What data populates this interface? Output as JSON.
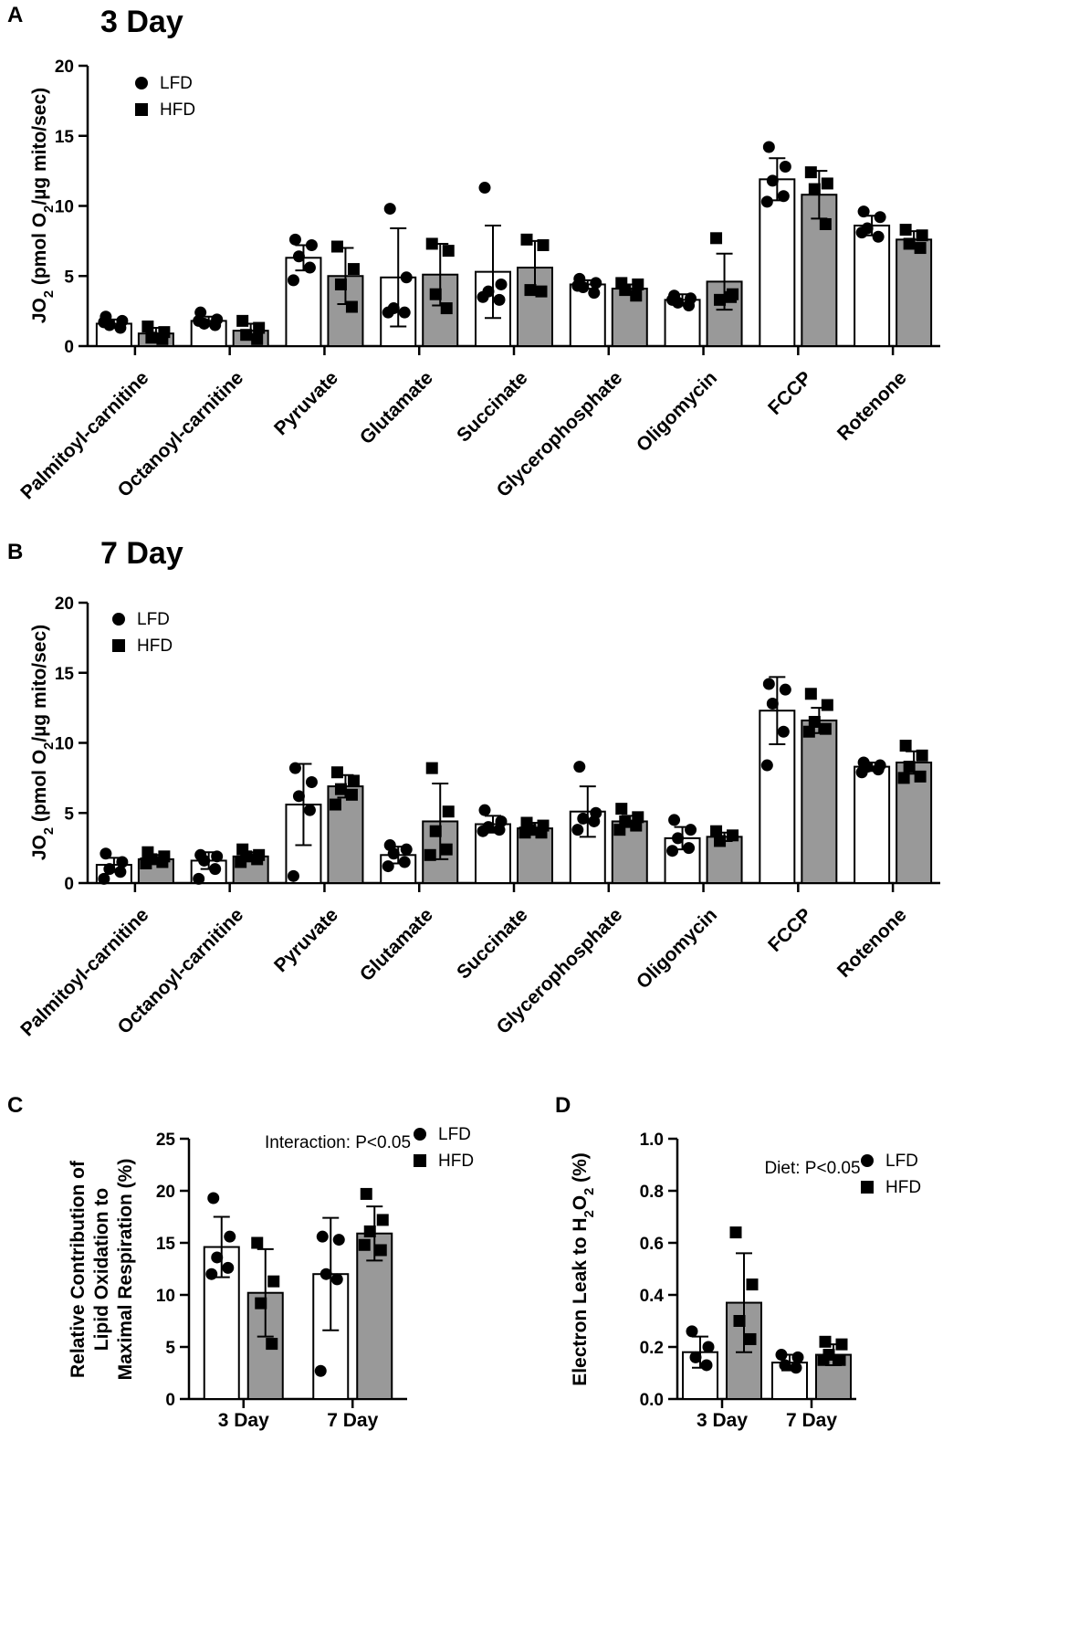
{
  "chart_data": [
    {
      "id": "A",
      "type": "bar",
      "panel_label": "A",
      "title": "3 Day",
      "ylabel": "JO2 (pmol O2/µg mito/sec)",
      "ylim": [
        0,
        20
      ],
      "yticks": [
        0,
        5,
        10,
        15,
        20
      ],
      "categories": [
        "Palmitoyl-carnitine",
        "Octanoyl-carnitine",
        "Pyruvate",
        "Glutamate",
        "Succinate",
        "Glycerophosphate",
        "Oligomycin",
        "FCCP",
        "Rotenone"
      ],
      "legend": [
        {
          "label": "LFD",
          "marker": "circle"
        },
        {
          "label": "HFD",
          "marker": "square"
        }
      ],
      "series": [
        {
          "name": "LFD",
          "color": "#ffffff",
          "values": [
            1.6,
            1.8,
            6.3,
            4.9,
            5.3,
            4.4,
            3.3,
            11.9,
            8.6
          ],
          "sd": [
            0.3,
            0.3,
            0.9,
            3.5,
            3.3,
            0.3,
            0.4,
            1.5,
            0.7
          ],
          "points": [
            [
              2.1,
              1.8,
              1.5,
              1.3,
              1.7
            ],
            [
              2.4,
              1.9,
              1.6,
              1.5,
              1.8
            ],
            [
              7.6,
              7.2,
              6.4,
              5.6,
              4.7
            ],
            [
              9.8,
              4.9,
              2.7,
              2.4,
              2.4
            ],
            [
              11.3,
              4.4,
              3.9,
              3.3,
              3.5
            ],
            [
              4.8,
              4.5,
              4.2,
              3.8,
              4.3
            ],
            [
              3.6,
              3.4,
              3.1,
              2.9,
              3.3
            ],
            [
              14.2,
              12.8,
              11.8,
              10.7,
              10.3
            ],
            [
              9.6,
              9.2,
              8.4,
              7.8,
              8.1
            ]
          ]
        },
        {
          "name": "HFD",
          "color": "#999999",
          "values": [
            0.9,
            1.1,
            5.0,
            5.1,
            5.6,
            4.1,
            4.6,
            10.8,
            7.6
          ],
          "sd": [
            0.4,
            0.5,
            2.0,
            2.2,
            1.9,
            0.3,
            2.0,
            1.7,
            0.6
          ],
          "points": [
            [
              1.4,
              1.0,
              0.6,
              0.5
            ],
            [
              1.8,
              1.3,
              0.8,
              0.5
            ],
            [
              7.1,
              5.5,
              4.4,
              2.8
            ],
            [
              7.3,
              6.8,
              3.7,
              2.7
            ],
            [
              7.6,
              7.2,
              4.0,
              3.9
            ],
            [
              4.5,
              4.4,
              4.0,
              3.6
            ],
            [
              7.7,
              3.7,
              3.3,
              3.5
            ],
            [
              12.4,
              11.6,
              11.2,
              8.7
            ],
            [
              8.3,
              7.9,
              7.3,
              7.0
            ]
          ]
        }
      ]
    },
    {
      "id": "B",
      "type": "bar",
      "panel_label": "B",
      "title": "7 Day",
      "ylabel": "JO2 (pmol O2/µg mito/sec)",
      "ylim": [
        0,
        20
      ],
      "yticks": [
        0,
        5,
        10,
        15,
        20
      ],
      "categories": [
        "Palmitoyl-carnitine",
        "Octanoyl-carnitine",
        "Pyruvate",
        "Glutamate",
        "Succinate",
        "Glycerophosphate",
        "Oligomycin",
        "FCCP",
        "Rotenone"
      ],
      "legend": [
        {
          "label": "LFD",
          "marker": "circle"
        },
        {
          "label": "HFD",
          "marker": "square"
        }
      ],
      "series": [
        {
          "name": "LFD",
          "color": "#ffffff",
          "values": [
            1.3,
            1.6,
            5.6,
            2.0,
            4.2,
            5.1,
            3.2,
            12.3,
            8.3
          ],
          "sd": [
            0.5,
            0.6,
            2.9,
            0.6,
            0.6,
            1.8,
            0.8,
            2.4,
            0.3
          ],
          "points": [
            [
              2.1,
              1.5,
              1.0,
              0.8,
              0.3
            ],
            [
              2.0,
              1.9,
              1.6,
              1.0,
              0.3
            ],
            [
              8.2,
              7.2,
              6.2,
              5.2,
              0.5
            ],
            [
              2.7,
              2.4,
              2.1,
              1.5,
              1.2
            ],
            [
              5.2,
              4.4,
              4.0,
              3.8,
              3.7
            ],
            [
              8.3,
              5.0,
              4.6,
              4.4,
              3.8
            ],
            [
              4.5,
              3.8,
              3.2,
              2.5,
              2.3
            ],
            [
              14.2,
              13.8,
              12.8,
              10.8,
              8.4
            ],
            [
              8.6,
              8.4,
              8.3,
              8.1,
              7.9
            ]
          ]
        },
        {
          "name": "HFD",
          "color": "#999999",
          "values": [
            1.7,
            1.9,
            6.9,
            4.4,
            3.9,
            4.4,
            3.3,
            11.6,
            8.6
          ],
          "sd": [
            0.3,
            0.3,
            0.8,
            2.7,
            0.4,
            0.4,
            0.3,
            0.9,
            0.8
          ],
          "points": [
            [
              2.2,
              1.9,
              1.7,
              1.5,
              1.4
            ],
            [
              2.4,
              2.0,
              1.9,
              1.7,
              1.5
            ],
            [
              7.9,
              7.3,
              6.7,
              6.3,
              5.6
            ],
            [
              8.2,
              5.1,
              3.7,
              2.4,
              2.0
            ],
            [
              4.3,
              4.1,
              3.8,
              3.6,
              3.6
            ],
            [
              5.3,
              4.7,
              4.4,
              4.1,
              3.8
            ],
            [
              3.7,
              3.4,
              3.0
            ],
            [
              13.5,
              12.7,
              11.5,
              11.0,
              10.8
            ],
            [
              9.8,
              9.1,
              8.3,
              7.6,
              7.5
            ]
          ]
        }
      ]
    },
    {
      "id": "C",
      "type": "bar",
      "panel_label": "C",
      "title": "",
      "ylabel_lines": [
        "Relative Contribution of",
        "Lipid Oxidation to",
        "Maximal Respiration (%)"
      ],
      "ylim": [
        0,
        25
      ],
      "yticks": [
        0,
        5,
        10,
        15,
        20,
        25
      ],
      "categories": [
        "3 Day",
        "7 Day"
      ],
      "annotation": "Interaction: P<0.05",
      "legend": [
        {
          "label": "LFD",
          "marker": "circle"
        },
        {
          "label": "HFD",
          "marker": "square"
        }
      ],
      "series": [
        {
          "name": "LFD",
          "color": "#ffffff",
          "values": [
            14.6,
            12.0
          ],
          "sd": [
            2.9,
            5.4
          ],
          "points": [
            [
              19.3,
              15.6,
              13.6,
              12.6,
              12.0
            ],
            [
              15.6,
              15.3,
              12.0,
              11.5,
              2.7
            ]
          ]
        },
        {
          "name": "HFD",
          "color": "#999999",
          "values": [
            10.2,
            15.9
          ],
          "sd": [
            4.2,
            2.6
          ],
          "points": [
            [
              15.0,
              11.3,
              9.2,
              5.3
            ],
            [
              19.7,
              17.2,
              16.1,
              14.3,
              14.8
            ]
          ]
        }
      ]
    },
    {
      "id": "D",
      "type": "bar",
      "panel_label": "D",
      "title": "",
      "ylabel": "Electron Leak to H2O2 (%)",
      "ylim": [
        0,
        1.0
      ],
      "yticks": [
        0.0,
        0.2,
        0.4,
        0.6,
        0.8,
        1.0
      ],
      "categories": [
        "3 Day",
        "7 Day"
      ],
      "annotation": "Diet: P<0.05",
      "legend": [
        {
          "label": "LFD",
          "marker": "circle"
        },
        {
          "label": "HFD",
          "marker": "square"
        }
      ],
      "series": [
        {
          "name": "LFD",
          "color": "#ffffff",
          "values": [
            0.18,
            0.14
          ],
          "sd": [
            0.06,
            0.03
          ],
          "points": [
            [
              0.26,
              0.2,
              0.16,
              0.13
            ],
            [
              0.17,
              0.16,
              0.13,
              0.12
            ]
          ]
        },
        {
          "name": "HFD",
          "color": "#999999",
          "values": [
            0.37,
            0.17
          ],
          "sd": [
            0.19,
            0.04
          ],
          "points": [
            [
              0.64,
              0.44,
              0.3,
              0.23
            ],
            [
              0.22,
              0.21,
              0.17,
              0.15,
              0.15
            ]
          ]
        }
      ]
    }
  ]
}
